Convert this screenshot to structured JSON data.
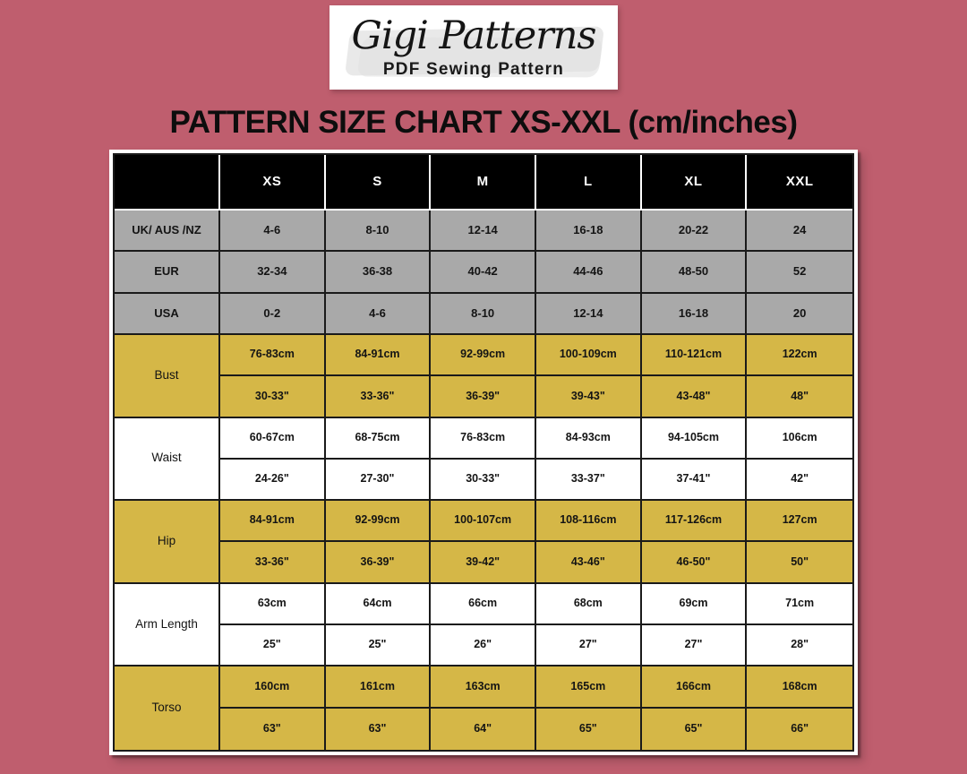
{
  "logo": {
    "brand": "Gigi Patterns",
    "subtitle": "PDF Sewing Pattern"
  },
  "chart_data": {
    "type": "table",
    "title": "PATTERN SIZE CHART XS-XXL (cm/inches)",
    "columns": [
      "",
      "XS",
      "S",
      "M",
      "L",
      "XL",
      "XXL"
    ],
    "size_system_rows": [
      {
        "label": "UK/ AUS /NZ",
        "values": [
          "4-6",
          "8-10",
          "12-14",
          "16-18",
          "20-22",
          "24"
        ]
      },
      {
        "label": "EUR",
        "values": [
          "32-34",
          "36-38",
          "40-42",
          "44-46",
          "48-50",
          "52"
        ]
      },
      {
        "label": "USA",
        "values": [
          "0-2",
          "4-6",
          "8-10",
          "12-14",
          "16-18",
          "20"
        ]
      }
    ],
    "measurement_rows": [
      {
        "label": "Bust",
        "tint": "gold",
        "cm": [
          "76-83cm",
          "84-91cm",
          "92-99cm",
          "100-109cm",
          "110-121cm",
          "122cm"
        ],
        "inches": [
          "30-33\"",
          "33-36\"",
          "36-39\"",
          "39-43\"",
          "43-48\"",
          "48\""
        ]
      },
      {
        "label": "Waist",
        "tint": "white",
        "cm": [
          "60-67cm",
          "68-75cm",
          "76-83cm",
          "84-93cm",
          "94-105cm",
          "106cm"
        ],
        "inches": [
          "24-26\"",
          "27-30\"",
          "30-33\"",
          "33-37\"",
          "37-41\"",
          "42\""
        ]
      },
      {
        "label": "Hip",
        "tint": "gold",
        "cm": [
          "84-91cm",
          "92-99cm",
          "100-107cm",
          "108-116cm",
          "117-126cm",
          "127cm"
        ],
        "inches": [
          "33-36\"",
          "36-39\"",
          "39-42\"",
          "43-46\"",
          "46-50\"",
          "50\""
        ]
      },
      {
        "label": "Arm Length",
        "tint": "white",
        "cm": [
          "63cm",
          "64cm",
          "66cm",
          "68cm",
          "69cm",
          "71cm"
        ],
        "inches": [
          "25\"",
          "25\"",
          "26\"",
          "27\"",
          "27\"",
          "28\""
        ]
      },
      {
        "label": "Torso",
        "tint": "gold",
        "cm": [
          "160cm",
          "161cm",
          "163cm",
          "165cm",
          "166cm",
          "168cm"
        ],
        "inches": [
          "63\"",
          "63\"",
          "64\"",
          "65\"",
          "65\"",
          "66\""
        ]
      }
    ]
  },
  "colors": {
    "background": "#bf5e6e",
    "header_bg": "#000000",
    "header_text": "#ffffff",
    "system_row_bg": "#a9a9a9",
    "gold_row_bg": "#d5b747",
    "white_row_bg": "#ffffff",
    "grid_line": "#1a1a1a",
    "title_text": "#0d0d0d"
  }
}
